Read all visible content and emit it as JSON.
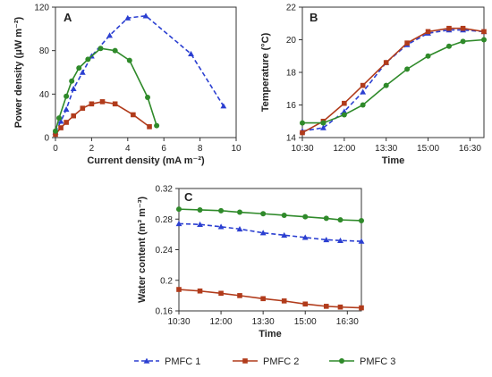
{
  "colors": {
    "PMFC 1": "#2b3fd1",
    "PMFC 2": "#b13b1b",
    "PMFC 3": "#2f8a2a",
    "axis": "#333333"
  },
  "legend": {
    "position": "bottom",
    "items": [
      "PMFC 1",
      "PMFC 2",
      "PMFC 3"
    ]
  },
  "chart_data": [
    {
      "panel": "A",
      "type": "line",
      "xlabel": "Current density (mA m⁻²)",
      "ylabel": "Power density (μW m⁻²)",
      "xlim": [
        0,
        10
      ],
      "ylim": [
        0,
        120
      ],
      "xticks": [
        0,
        2,
        4,
        6,
        8,
        10
      ],
      "yticks": [
        0,
        40,
        80,
        120
      ],
      "grid": false,
      "series": [
        {
          "name": "PMFC 1",
          "style": "dashed",
          "marker": "triangle",
          "x": [
            0.0,
            0.3,
            0.6,
            1.0,
            1.5,
            2.0,
            3.0,
            4.0,
            5.0,
            7.5,
            9.3
          ],
          "y": [
            5,
            15,
            26,
            45,
            60,
            75,
            94,
            110,
            112,
            77,
            29
          ]
        },
        {
          "name": "PMFC 2",
          "style": "solid",
          "marker": "square",
          "x": [
            0.0,
            0.3,
            0.6,
            1.0,
            1.5,
            2.0,
            2.6,
            3.3,
            4.3,
            5.2
          ],
          "y": [
            3,
            9,
            14,
            20,
            27,
            31,
            33,
            31,
            21,
            10
          ]
        },
        {
          "name": "PMFC 3",
          "style": "solid",
          "marker": "circle",
          "x": [
            0.0,
            0.2,
            0.6,
            0.9,
            1.3,
            1.8,
            2.5,
            3.3,
            4.1,
            5.1,
            5.6
          ],
          "y": [
            6,
            18,
            38,
            52,
            64,
            72,
            82,
            80,
            71,
            37,
            11
          ]
        }
      ]
    },
    {
      "panel": "B",
      "type": "line",
      "xlabel": "Time",
      "ylabel": "Temperature (°C)",
      "xlim": [
        630,
        1020
      ],
      "ylim": [
        14,
        22
      ],
      "xtick_values": [
        630,
        720,
        810,
        900,
        990
      ],
      "xtick_labels": [
        "10:30",
        "12:00",
        "13:30",
        "15:00",
        "16:30"
      ],
      "yticks": [
        14,
        16,
        18,
        20,
        22
      ],
      "grid": false,
      "series": [
        {
          "name": "PMFC 1",
          "style": "dashed",
          "marker": "triangle",
          "x": [
            630,
            675,
            720,
            760,
            810,
            855,
            900,
            945,
            975,
            1020
          ],
          "y": [
            14.4,
            14.6,
            15.6,
            16.8,
            18.6,
            19.7,
            20.4,
            20.6,
            20.6,
            20.5
          ]
        },
        {
          "name": "PMFC 2",
          "style": "solid",
          "marker": "square",
          "x": [
            630,
            675,
            720,
            760,
            810,
            855,
            900,
            945,
            975,
            1020
          ],
          "y": [
            14.3,
            15.0,
            16.1,
            17.2,
            18.6,
            19.8,
            20.5,
            20.7,
            20.7,
            20.5
          ]
        },
        {
          "name": "PMFC 3",
          "style": "solid",
          "marker": "circle",
          "x": [
            630,
            675,
            720,
            760,
            810,
            855,
            900,
            945,
            975,
            1020
          ],
          "y": [
            14.9,
            14.9,
            15.4,
            16.0,
            17.2,
            18.2,
            19.0,
            19.6,
            19.9,
            20.0
          ]
        }
      ]
    },
    {
      "panel": "C",
      "type": "line",
      "xlabel": "Time",
      "ylabel": "Water content (m³ m⁻³)",
      "xlim": [
        630,
        1020
      ],
      "ylim": [
        0.16,
        0.32
      ],
      "xtick_values": [
        630,
        720,
        810,
        900,
        990
      ],
      "xtick_labels": [
        "10:30",
        "12:00",
        "13:30",
        "15:00",
        "16:30"
      ],
      "yticks": [
        0.16,
        0.2,
        0.24,
        0.28,
        0.32
      ],
      "ytick_labels": [
        "0.16",
        "0.2",
        "0.24",
        "0.28",
        "0.32"
      ],
      "grid": false,
      "series": [
        {
          "name": "PMFC 1",
          "style": "dashed",
          "marker": "triangle",
          "x": [
            630,
            675,
            720,
            760,
            810,
            855,
            900,
            945,
            975,
            1020
          ],
          "y": [
            0.274,
            0.273,
            0.27,
            0.267,
            0.262,
            0.259,
            0.256,
            0.253,
            0.252,
            0.251
          ]
        },
        {
          "name": "PMFC 2",
          "style": "solid",
          "marker": "square",
          "x": [
            630,
            675,
            720,
            760,
            810,
            855,
            900,
            945,
            975,
            1020
          ],
          "y": [
            0.188,
            0.186,
            0.183,
            0.18,
            0.176,
            0.173,
            0.169,
            0.166,
            0.165,
            0.164
          ]
        },
        {
          "name": "PMFC 3",
          "style": "solid",
          "marker": "circle",
          "x": [
            630,
            675,
            720,
            760,
            810,
            855,
            900,
            945,
            975,
            1020
          ],
          "y": [
            0.293,
            0.292,
            0.291,
            0.289,
            0.287,
            0.285,
            0.283,
            0.281,
            0.279,
            0.278
          ]
        }
      ]
    }
  ]
}
